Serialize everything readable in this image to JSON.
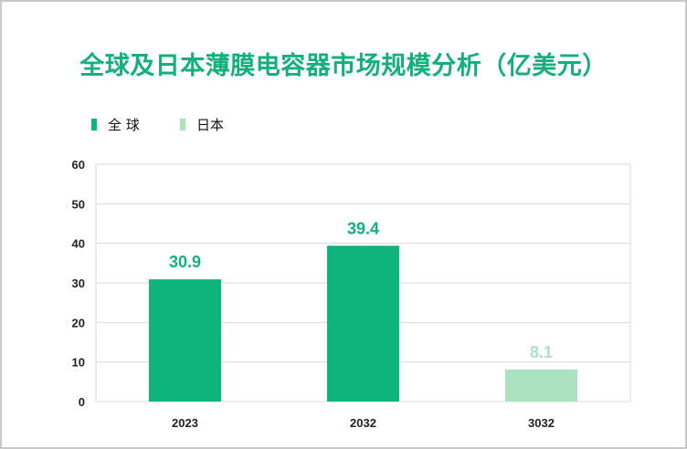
{
  "title": "全球及日本薄膜电容器市场规模分析（亿美元）",
  "legend": [
    {
      "label": "全 球",
      "color": "#0fb37c"
    },
    {
      "label": "日本",
      "color": "#abe3c0"
    }
  ],
  "chart_data": {
    "type": "bar",
    "title": "全球及日本薄膜电容器市场规模分析（亿美元）",
    "categories": [
      "2023",
      "2032",
      "3032"
    ],
    "series": [
      {
        "name": "全 球",
        "color": "#0fb37c",
        "values": [
          30.9,
          39.4,
          null
        ]
      },
      {
        "name": "日本",
        "color": "#abe3c0",
        "values": [
          null,
          null,
          8.1
        ]
      }
    ],
    "data_labels": [
      "30.9",
      "39.4",
      "8.1"
    ],
    "ylim": [
      0,
      60
    ],
    "yticks": [
      "0",
      "10",
      "20",
      "30",
      "40",
      "50",
      "60"
    ],
    "grid": true,
    "legend_position": "top-left",
    "xlabel": "",
    "ylabel": ""
  }
}
